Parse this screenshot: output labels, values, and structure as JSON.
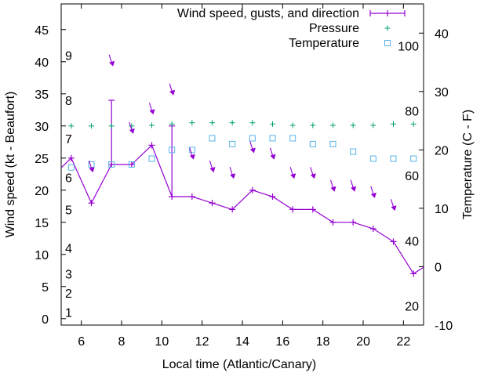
{
  "chart_data": {
    "type": "line",
    "xlabel": "Local time (Atlantic/Canary)",
    "ylabel": "Wind speed (kt - Beaufort)",
    "y2label": "Temperature (C - F)",
    "xlim": [
      5,
      23
    ],
    "ylim": [
      -1,
      49
    ],
    "y2lim": [
      -10,
      45
    ],
    "x_ticks": [
      6,
      8,
      10,
      12,
      14,
      16,
      18,
      20,
      22
    ],
    "y_ticks": [
      0,
      5,
      10,
      15,
      20,
      25,
      30,
      35,
      40,
      45
    ],
    "y2_ticks": [
      -10,
      0,
      10,
      20,
      30,
      40
    ],
    "beaufort_labels": [
      {
        "label": "1",
        "wind_kt": 1
      },
      {
        "label": "2",
        "wind_kt": 4
      },
      {
        "label": "3",
        "wind_kt": 7
      },
      {
        "label": "4",
        "wind_kt": 11
      },
      {
        "label": "5",
        "wind_kt": 17
      },
      {
        "label": "6",
        "wind_kt": 22
      },
      {
        "label": "7",
        "wind_kt": 28
      },
      {
        "label": "8",
        "wind_kt": 34
      },
      {
        "label": "9",
        "wind_kt": 41
      }
    ],
    "fahrenheit_labels": [
      {
        "label": "20",
        "temp_c": -6.7
      },
      {
        "label": "40",
        "temp_c": 4.4
      },
      {
        "label": "60",
        "temp_c": 15.6
      },
      {
        "label": "80",
        "temp_c": 26.7
      },
      {
        "label": "100",
        "temp_c": 37.8
      }
    ],
    "legend_position": "top-right",
    "series": [
      {
        "name": "Wind speed, gusts, and direction",
        "color": "#9400d3",
        "x": [
          4.5,
          5.5,
          6.5,
          7.5,
          8.5,
          9.5,
          10.5,
          11.5,
          12.5,
          13.5,
          14.5,
          15.5,
          16.5,
          17.5,
          18.5,
          19.5,
          20.5,
          21.5,
          22.5,
          23.5
        ],
        "y": [
          22,
          25,
          18,
          24,
          24,
          27,
          19,
          19,
          18,
          17,
          20,
          19,
          17,
          17,
          15,
          15,
          14,
          12,
          7,
          9
        ],
        "gusts": [
          {
            "x": 7.5,
            "low": 24,
            "high": 34
          },
          {
            "x": 10.5,
            "low": 19,
            "high": 30
          }
        ]
      },
      {
        "name": "Pressure",
        "color": "#009e73",
        "x": [
          5.5,
          6.5,
          7.5,
          8.5,
          9.5,
          10.5,
          11.5,
          12.5,
          13.5,
          14.5,
          15.5,
          16.5,
          17.5,
          18.5,
          19.5,
          20.5,
          21.5,
          22.5
        ],
        "y": [
          30,
          30,
          30,
          30,
          30.1,
          30.3,
          30.5,
          30.5,
          30.5,
          30.5,
          30.3,
          30.1,
          30.1,
          30.1,
          30.1,
          30.1,
          30.3,
          30.3
        ]
      },
      {
        "name": "Temperature",
        "color": "#56b4e9",
        "x": [
          5.5,
          6.5,
          7.5,
          8.5,
          9.5,
          10.5,
          11.5,
          12.5,
          13.5,
          14.5,
          15.5,
          16.5,
          17.5,
          18.5,
          19.5,
          20.5,
          21.5,
          22.5
        ],
        "y": [
          17,
          17.5,
          17.5,
          17.5,
          18.5,
          20,
          20,
          22,
          21,
          22,
          22,
          22,
          21,
          21,
          19.7,
          18.5,
          18.5,
          18.5
        ]
      }
    ],
    "wind_arrows": [
      {
        "x": 6.5,
        "wind_kt": 23.5
      },
      {
        "x": 7.5,
        "wind_kt": 40
      },
      {
        "x": 8.5,
        "wind_kt": 29.5
      },
      {
        "x": 9.5,
        "wind_kt": 32.5
      },
      {
        "x": 10.5,
        "wind_kt": 35.5
      },
      {
        "x": 11.5,
        "wind_kt": 25.5
      },
      {
        "x": 12.5,
        "wind_kt": 23.5
      },
      {
        "x": 13.5,
        "wind_kt": 22.5
      },
      {
        "x": 14.5,
        "wind_kt": 26.5
      },
      {
        "x": 15.5,
        "wind_kt": 25.5
      },
      {
        "x": 16.5,
        "wind_kt": 22.5
      },
      {
        "x": 17.5,
        "wind_kt": 22.5
      },
      {
        "x": 18.5,
        "wind_kt": 20.5
      },
      {
        "x": 19.5,
        "wind_kt": 20.5
      },
      {
        "x": 20.5,
        "wind_kt": 19.5
      },
      {
        "x": 21.5,
        "wind_kt": 17.5
      }
    ]
  }
}
